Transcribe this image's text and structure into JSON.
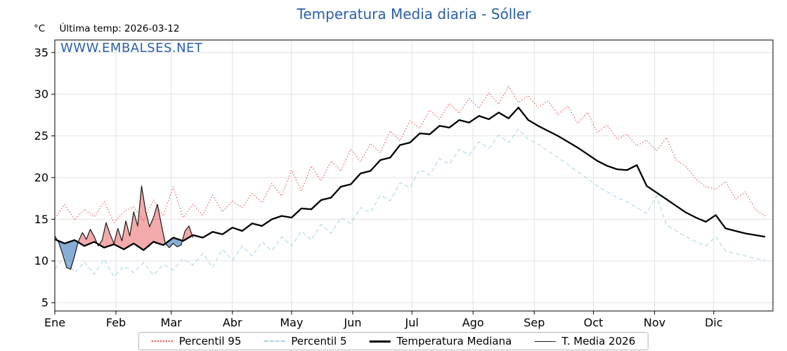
{
  "title": "Temperatura Media diaria - Sóller",
  "labels": {
    "unit": "°C",
    "last_temp": "Última temp: 2026-03-12",
    "watermark": "WWW.EMBALSES.NET"
  },
  "colors": {
    "title": "#2a5fa8",
    "watermark": "#2a5fa8",
    "grid": "#e2e2e2",
    "axis": "#000000",
    "p95": "#e04343",
    "p5": "#a2d4e4",
    "median": "#000000",
    "t2026": "#1a1a1a",
    "fill_above": "#e85555",
    "fill_below": "#4f86c0"
  },
  "chart_data": {
    "type": "line",
    "title": "Temperatura Media diaria - Sóller",
    "xlabel": "",
    "ylabel": "°C",
    "ylim": [
      4,
      36.5
    ],
    "yticks": [
      5,
      10,
      15,
      20,
      25,
      30,
      35
    ],
    "x_tick_labels": [
      "Ene",
      "Feb",
      "Mar",
      "Abr",
      "May",
      "Jun",
      "Jul",
      "Ago",
      "Sep",
      "Oct",
      "Nov",
      "Dic"
    ],
    "month_start_days": [
      0,
      31,
      59,
      90,
      120,
      151,
      181,
      212,
      243,
      273,
      304,
      334
    ],
    "x_range_days": [
      0,
      364
    ],
    "grid": true,
    "legend_position": "bottom",
    "series": [
      {
        "name": "Percentil 95",
        "style": "dotted",
        "color": "#e04343",
        "width": 1,
        "x_step": 5,
        "values": [
          15.1,
          16.8,
          14.9,
          16.2,
          15.3,
          17.1,
          14.6,
          15.9,
          16.5,
          14.8,
          17.3,
          15.4,
          18.9,
          15.2,
          16.8,
          15.5,
          17.9,
          15.9,
          17.2,
          16.4,
          18.1,
          17.0,
          19.3,
          17.8,
          20.9,
          18.4,
          21.4,
          19.6,
          22.0,
          20.8,
          23.4,
          21.9,
          24.1,
          23.0,
          25.6,
          24.4,
          26.8,
          25.9,
          28.1,
          27.0,
          28.9,
          27.7,
          29.5,
          28.3,
          30.2,
          28.8,
          31.0,
          29.0,
          29.8,
          28.4,
          29.2,
          27.6,
          28.6,
          26.5,
          27.8,
          25.4,
          26.3,
          24.6,
          25.2,
          23.8,
          24.5,
          23.2,
          24.8,
          22.1,
          21.3,
          19.8,
          18.9,
          18.6,
          19.5,
          17.4,
          18.3,
          16.2,
          15.4
        ]
      },
      {
        "name": "Percentil 5",
        "style": "dashed",
        "color": "#a2d4e4",
        "width": 1,
        "x_step": 5,
        "values": [
          9.0,
          10.5,
          8.6,
          9.9,
          8.4,
          10.2,
          8.1,
          9.4,
          8.6,
          9.8,
          8.3,
          9.6,
          8.9,
          10.3,
          9.5,
          10.9,
          9.2,
          11.4,
          10.1,
          11.8,
          10.6,
          12.3,
          11.2,
          12.9,
          11.8,
          13.6,
          12.5,
          14.4,
          13.3,
          15.2,
          14.5,
          16.4,
          15.8,
          17.9,
          17.2,
          19.4,
          18.8,
          21.0,
          20.3,
          22.3,
          21.6,
          23.4,
          22.7,
          24.3,
          23.5,
          25.1,
          24.2,
          25.8,
          24.6,
          24.0,
          23.2,
          22.4,
          21.6,
          20.7,
          19.9,
          19.0,
          18.3,
          17.6,
          17.1,
          16.4,
          15.7,
          17.8,
          14.3,
          13.6,
          12.9,
          12.3,
          11.8,
          12.9,
          11.2,
          10.9,
          10.6,
          10.3,
          10.1
        ]
      },
      {
        "name": "Temperatura Mediana",
        "style": "solid",
        "color": "#000000",
        "width": 2.3,
        "x_step": 5,
        "values": [
          12.6,
          12.1,
          12.5,
          11.8,
          12.3,
          11.6,
          12.0,
          11.4,
          12.1,
          11.3,
          12.3,
          11.9,
          12.8,
          12.4,
          13.1,
          12.8,
          13.5,
          13.2,
          14.0,
          13.6,
          14.5,
          14.2,
          15.0,
          15.4,
          15.2,
          16.3,
          16.2,
          17.3,
          17.6,
          18.9,
          19.2,
          20.5,
          20.8,
          22.1,
          22.4,
          23.9,
          24.2,
          25.3,
          25.2,
          26.2,
          26.0,
          26.9,
          26.6,
          27.4,
          27.0,
          27.8,
          27.1,
          28.4,
          26.9,
          26.2,
          25.6,
          25.0,
          24.3,
          23.6,
          22.8,
          22.0,
          21.4,
          21.0,
          20.9,
          21.5,
          19.0,
          18.2,
          17.4,
          16.6,
          15.8,
          15.2,
          14.7,
          15.5,
          13.9,
          13.6,
          13.3,
          13.1,
          12.9
        ]
      },
      {
        "name": "T. Media 2026",
        "style": "solid",
        "color": "#1a1a1a",
        "width": 1.2,
        "x_step": 2,
        "values": [
          13.0,
          12.2,
          10.8,
          9.2,
          9.0,
          10.6,
          12.4,
          13.4,
          12.6,
          13.8,
          12.9,
          11.8,
          12.5,
          14.6,
          13.2,
          12.1,
          13.9,
          12.4,
          14.8,
          13.0,
          15.9,
          14.2,
          19.0,
          16.0,
          14.1,
          15.2,
          16.8,
          14.4,
          12.1,
          11.6,
          12.1,
          11.7,
          11.9,
          13.6,
          14.2,
          12.8
        ]
      }
    ],
    "fills": {
      "between": "T. Media 2026 and Temperatura Mediana",
      "above_color": "#e85555",
      "below_color": "#4f86c0"
    }
  }
}
